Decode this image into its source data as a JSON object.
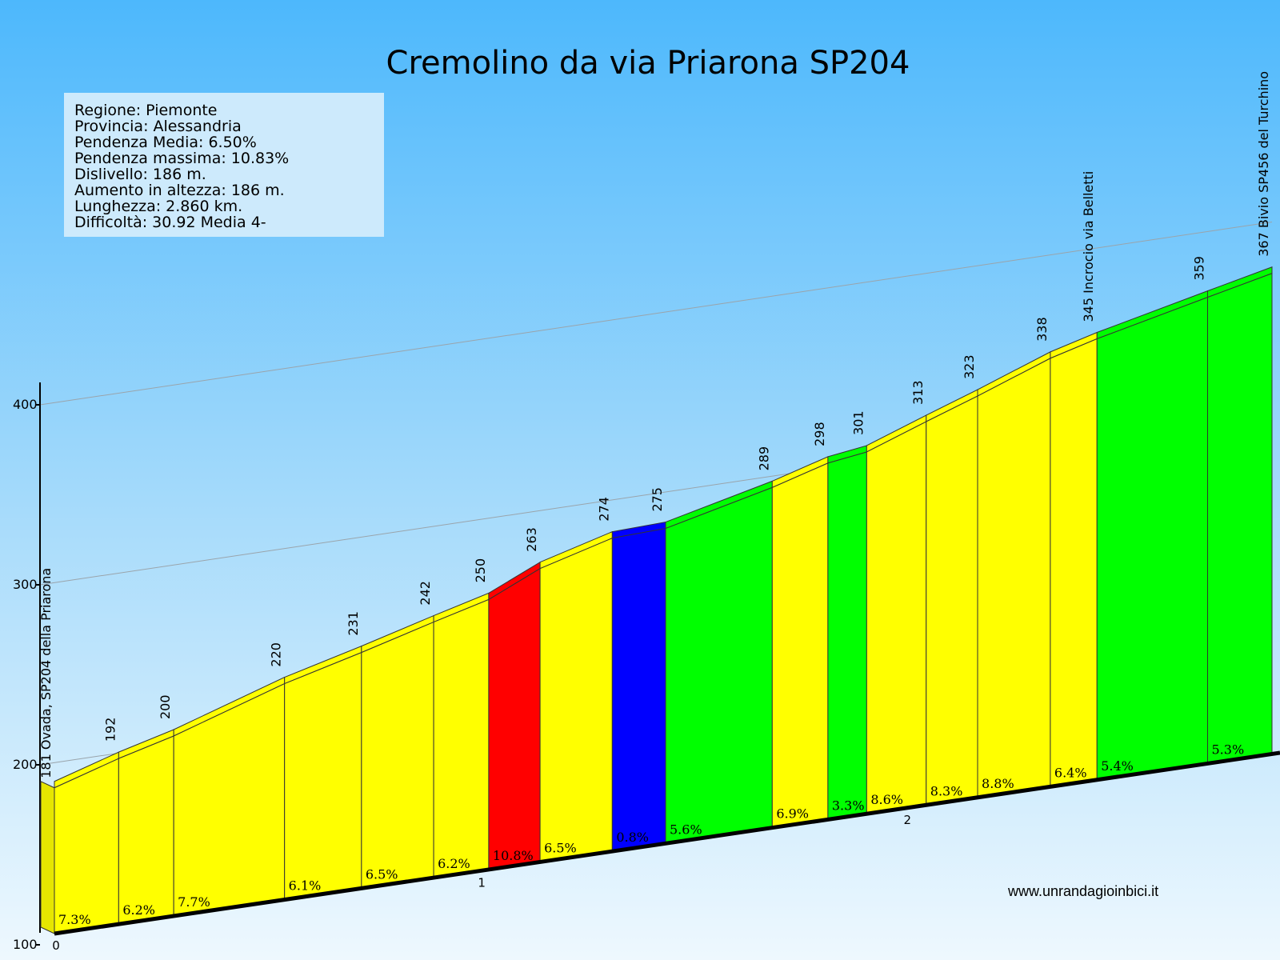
{
  "chart_data": {
    "type": "bar",
    "title": "Cremolino da via Priarona SP204",
    "info": [
      "Regione: Piemonte",
      "Provincia: Alessandria",
      "Pendenza Media: 6.50%",
      "Pendenza massima: 10.83%",
      "Dislivello: 186 m.",
      "Aumento in altezza: 186 m.",
      "Lunghezza: 2.860 km.",
      "Difficoltà: 30.92 Media 4-"
    ],
    "y_ticks": [
      "100",
      "200",
      "300",
      "400"
    ],
    "ylim": [
      100,
      400
    ],
    "x_ticks": [
      "0",
      "1",
      "2"
    ],
    "xlim_km": [
      0,
      2.86
    ],
    "segments": [
      {
        "altitude_label": "192",
        "altitude": 192,
        "grade": "7.3%",
        "color": "#ffff00"
      },
      {
        "altitude_label": "200",
        "altitude": 200,
        "grade": "6.2%",
        "color": "#ffff00"
      },
      {
        "altitude_label": "220",
        "altitude": 220,
        "grade": "7.7%",
        "color": "#ffff00"
      },
      {
        "altitude_label": "231",
        "altitude": 231,
        "grade": "6.1%",
        "color": "#ffff00"
      },
      {
        "altitude_label": "242",
        "altitude": 242,
        "grade": "6.5%",
        "color": "#ffff00"
      },
      {
        "altitude_label": "250",
        "altitude": 250,
        "grade": "6.2%",
        "color": "#ffff00"
      },
      {
        "altitude_label": "263",
        "altitude": 263,
        "grade": "10.8%",
        "color": "#ff0000"
      },
      {
        "altitude_label": "274",
        "altitude": 274,
        "grade": "6.5%",
        "color": "#ffff00"
      },
      {
        "altitude_label": "275",
        "altitude": 275,
        "grade": "0.8%",
        "color": "#0000ff"
      },
      {
        "altitude_label": "289",
        "altitude": 289,
        "grade": "5.6%",
        "color": "#00ff00"
      },
      {
        "altitude_label": "298",
        "altitude": 298,
        "grade": "6.9%",
        "color": "#ffff00"
      },
      {
        "altitude_label": "301",
        "altitude": 301,
        "grade": "3.3%",
        "color": "#00ff00"
      },
      {
        "altitude_label": "313",
        "altitude": 313,
        "grade": "8.6%",
        "color": "#ffff00"
      },
      {
        "altitude_label": "323",
        "altitude": 323,
        "grade": "8.3%",
        "color": "#ffff00"
      },
      {
        "altitude_label": "338",
        "altitude": 338,
        "grade": "8.8%",
        "color": "#ffff00"
      },
      {
        "altitude_label": "345 Incrocio via Belletti",
        "altitude": 345,
        "grade": "6.4%",
        "color": "#ffff00"
      },
      {
        "altitude_label": "359",
        "altitude": 359,
        "grade": "5.4%",
        "color": "#00ff00"
      },
      {
        "altitude_label": "367 Bivio SP456 del Turchino",
        "altitude": 367,
        "grade": "5.3%",
        "color": "#00ff00"
      }
    ],
    "start_label": "181 Ovada, SP204 della Priarona",
    "start_altitude": 181,
    "website": "www.unrandagioinbici.it"
  }
}
